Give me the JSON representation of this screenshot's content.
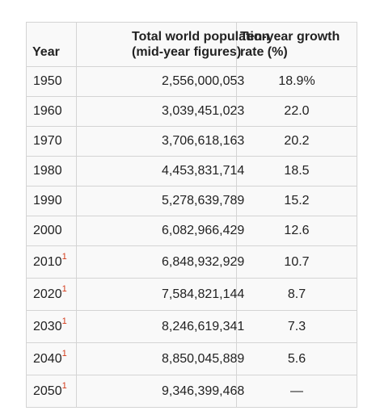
{
  "table": {
    "headers": {
      "year": "Year",
      "population_line1": "Total world population",
      "population_line2": "(mid-year figures)",
      "growth_line1": "Ten-year growth",
      "growth_line2": "rate (%)"
    },
    "rows": [
      {
        "year": "1950",
        "footnote": "",
        "population": "2,556,000,053",
        "growth": "18.9%"
      },
      {
        "year": "1960",
        "footnote": "",
        "population": "3,039,451,023",
        "growth": "22.0"
      },
      {
        "year": "1970",
        "footnote": "",
        "population": "3,706,618,163",
        "growth": "20.2"
      },
      {
        "year": "1980",
        "footnote": "",
        "population": "4,453,831,714",
        "growth": "18.5"
      },
      {
        "year": "1990",
        "footnote": "",
        "population": "5,278,639,789",
        "growth": "15.2"
      },
      {
        "year": "2000",
        "footnote": "",
        "population": "6,082,966,429",
        "growth": "12.6"
      },
      {
        "year": "2010",
        "footnote": "1",
        "population": "6,848,932,929",
        "growth": "10.7"
      },
      {
        "year": "2020",
        "footnote": "1",
        "population": "7,584,821,144",
        "growth": "8.7"
      },
      {
        "year": "2030",
        "footnote": "1",
        "population": "8,246,619,341",
        "growth": "7.3"
      },
      {
        "year": "2040",
        "footnote": "1",
        "population": "8,850,045,889",
        "growth": "5.6"
      },
      {
        "year": "2050",
        "footnote": "1",
        "population": "9,346,399,468",
        "growth": "—"
      }
    ]
  }
}
